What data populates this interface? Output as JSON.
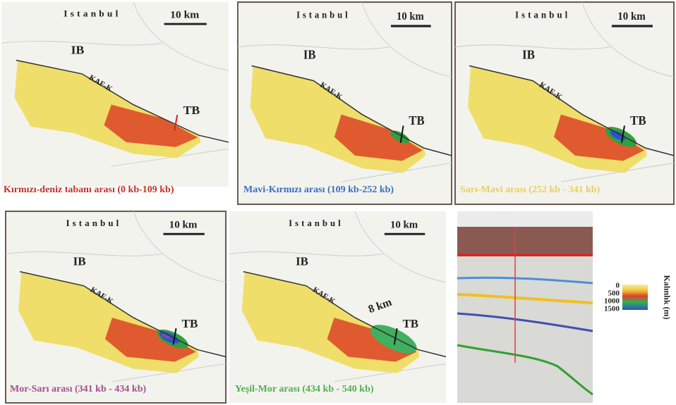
{
  "panels": [
    {
      "city": "Istanbul",
      "scale": "10 km",
      "west": "IB",
      "fault": "KAF-K",
      "east": "TB",
      "caption": "Kırmızı-deniz tabanı arası (0 kb-109 kb)"
    },
    {
      "city": "Istanbul",
      "scale": "10 km",
      "west": "IB",
      "fault": "KAF-K",
      "east": "TB",
      "caption": "Mavi-Kırmızı arası (109 kb-252 kb)"
    },
    {
      "city": "Istanbul",
      "scale": "10 km",
      "west": "IB",
      "fault": "KAF-K",
      "east": "TB",
      "caption": "Sarı-Mavi arası (252 kb - 341 kb)"
    },
    {
      "city": "Istanbul",
      "scale": "10 km",
      "west": "IB",
      "fault": "KAF-K",
      "east": "TB",
      "caption": "Mor-Sarı arası (341 kb - 434 kb)"
    },
    {
      "city": "Istanbul",
      "scale": "10 km",
      "west": "IB",
      "fault": "KAF-K",
      "east": "TB",
      "distance": "8 km",
      "caption": "Yeşil-Mor arası (434 kb - 540 kb)"
    }
  ],
  "colorbar": {
    "label": "Kalınlık (m)",
    "ticks": [
      "0",
      "500",
      "1000",
      "1500"
    ]
  }
}
